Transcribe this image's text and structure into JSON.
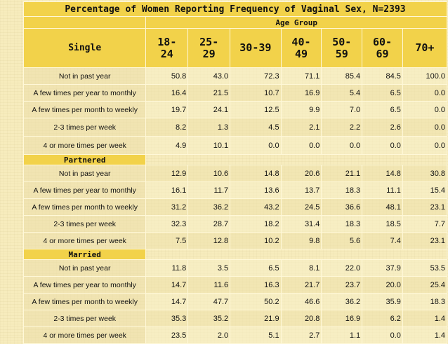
{
  "title": "Percentage of Women Reporting Frequency of Vaginal Sex, N=2393",
  "age_group_label": "Age Group",
  "first_header": "Single",
  "age_headers": [
    "18-\n24",
    "25-\n29",
    "30-39",
    "40-\n49",
    "50-\n59",
    "60-\n69",
    "70+"
  ],
  "sections": [
    {
      "name": "Single",
      "show_header": false,
      "rows": [
        {
          "label": "Not in past year",
          "values": [
            "50.8",
            "43.0",
            "72.3",
            "71.1",
            "85.4",
            "84.5",
            "100.0"
          ]
        },
        {
          "label": "A few times per year to monthly",
          "values": [
            "16.4",
            "21.5",
            "10.7",
            "16.9",
            "5.4",
            "6.5",
            "0.0"
          ]
        },
        {
          "label": "A few times per month to weekly",
          "values": [
            "19.7",
            "24.1",
            "12.5",
            "9.9",
            "7.0",
            "6.5",
            "0.0"
          ]
        },
        {
          "label": "2-3 times per week",
          "values": [
            "8.2",
            "1.3",
            "4.5",
            "2.1",
            "2.2",
            "2.6",
            "0.0"
          ]
        },
        {
          "label": "4 or more times per week",
          "values": [
            "4.9",
            "10.1",
            "0.0",
            "0.0",
            "0.0",
            "0.0",
            "0.0"
          ]
        }
      ]
    },
    {
      "name": "Partnered",
      "show_header": true,
      "rows": [
        {
          "label": "Not in past year",
          "values": [
            "12.9",
            "10.6",
            "14.8",
            "20.6",
            "21.1",
            "14.8",
            "30.8"
          ]
        },
        {
          "label": "A few times per year to monthly",
          "values": [
            "16.1",
            "11.7",
            "13.6",
            "13.7",
            "18.3",
            "11.1",
            "15.4"
          ]
        },
        {
          "label": "A few times per month to weekly",
          "values": [
            "31.2",
            "36.2",
            "43.2",
            "24.5",
            "36.6",
            "48.1",
            "23.1"
          ]
        },
        {
          "label": "2-3 times per week",
          "values": [
            "32.3",
            "28.7",
            "18.2",
            "31.4",
            "18.3",
            "18.5",
            "7.7"
          ]
        },
        {
          "label": "4 or more times per week",
          "values": [
            "7.5",
            "12.8",
            "10.2",
            "9.8",
            "5.6",
            "7.4",
            "23.1"
          ]
        }
      ]
    },
    {
      "name": "Married",
      "show_header": true,
      "rows": [
        {
          "label": "Not in past year",
          "values": [
            "11.8",
            "3.5",
            "6.5",
            "8.1",
            "22.0",
            "37.9",
            "53.5"
          ]
        },
        {
          "label": "A few times per year to monthly",
          "values": [
            "14.7",
            "11.6",
            "16.3",
            "21.7",
            "23.7",
            "20.0",
            "25.4"
          ]
        },
        {
          "label": "A few times per month to weekly",
          "values": [
            "14.7",
            "47.7",
            "50.2",
            "46.6",
            "36.2",
            "35.9",
            "18.3"
          ]
        },
        {
          "label": "2-3 times per week",
          "values": [
            "35.3",
            "35.2",
            "21.9",
            "20.8",
            "16.9",
            "6.2",
            "1.4"
          ]
        },
        {
          "label": "4 or more times per week",
          "values": [
            "23.5",
            "2.0",
            "5.1",
            "2.7",
            "1.1",
            "0.0",
            "1.4"
          ]
        }
      ]
    }
  ]
}
